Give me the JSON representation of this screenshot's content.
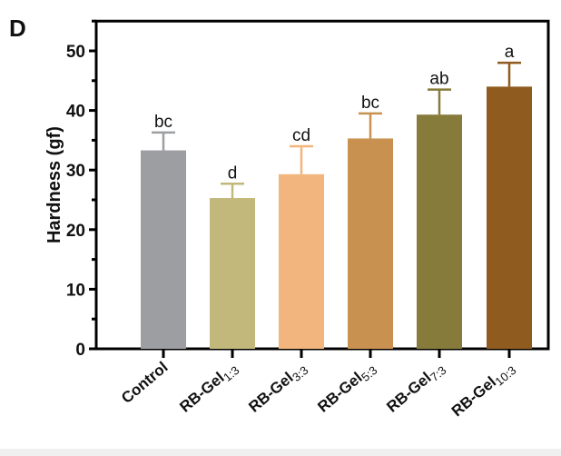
{
  "panel_label": "D",
  "chart_data": {
    "type": "bar",
    "title": "",
    "xlabel": "",
    "ylabel": "Hardness (gf)",
    "ylim": [
      0,
      55
    ],
    "yticks": [
      "0",
      "10",
      "20",
      "30",
      "40",
      "50"
    ],
    "grid": false,
    "categories": [
      {
        "base": "Control",
        "sub": ""
      },
      {
        "base": "RB-Gel",
        "sub": "1:3"
      },
      {
        "base": "RB-Gel",
        "sub": "3:3"
      },
      {
        "base": "RB-Gel",
        "sub": "5:3"
      },
      {
        "base": "RB-Gel",
        "sub": "7:3"
      },
      {
        "base": "RB-Gel",
        "sub": "10:3"
      }
    ],
    "values": [
      33.3,
      25.3,
      29.3,
      35.3,
      39.3,
      44.0
    ],
    "errors": [
      3.0,
      2.4,
      4.7,
      4.2,
      4.2,
      4.0
    ],
    "significance_letters": [
      "bc",
      "d",
      "cd",
      "bc",
      "ab",
      "a"
    ],
    "colors": [
      "#9d9ea2",
      "#c3b87b",
      "#f1b57d",
      "#c9914f",
      "#877b3b",
      "#8f5b1f"
    ]
  }
}
